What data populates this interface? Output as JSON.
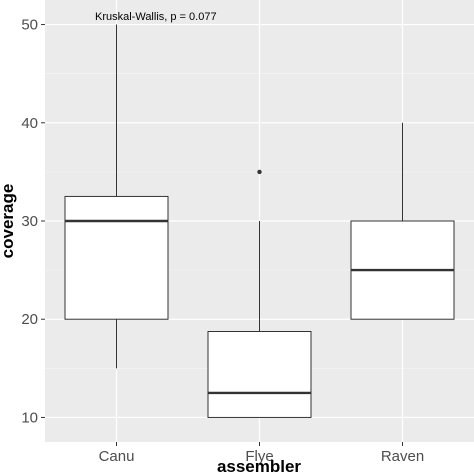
{
  "chart_data": {
    "type": "boxplot",
    "title": "",
    "xlabel": "assembler",
    "ylabel": "coverage",
    "categories": [
      "Canu",
      "Flye",
      "Raven"
    ],
    "ylim": [
      7.5,
      52.5
    ],
    "yticks": [
      10,
      20,
      30,
      40,
      50
    ],
    "grid": true,
    "annotation": "Kruskal-Wallis, p = 0.077",
    "boxes": [
      {
        "category": "Canu",
        "whisker_low": 15,
        "q1": 20,
        "median": 30,
        "q3": 32.5,
        "whisker_high": 50,
        "outliers": []
      },
      {
        "category": "Flye",
        "whisker_low": 10,
        "q1": 10,
        "median": 12.5,
        "q3": 18.75,
        "whisker_high": 30,
        "outliers": [
          35
        ]
      },
      {
        "category": "Raven",
        "whisker_low": 20,
        "q1": 20,
        "median": 25,
        "q3": 30,
        "whisker_high": 40,
        "outliers": []
      }
    ],
    "colors": {
      "panel_background": "#ebebeb",
      "grid_major": "#ffffff",
      "grid_minor": "#f5f5f5",
      "box_fill": "#ffffff",
      "box_stroke": "#333333"
    }
  }
}
